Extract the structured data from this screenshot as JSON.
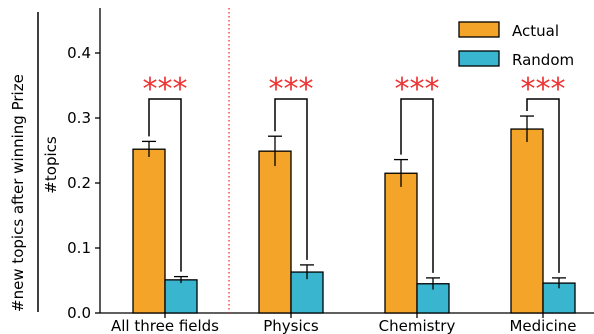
{
  "chart_data": {
    "type": "bar",
    "categories": [
      "All three fields",
      "Physics",
      "Chemistry",
      "Medicine"
    ],
    "series": [
      {
        "name": "Actual",
        "values": [
          0.252,
          0.249,
          0.215,
          0.283
        ],
        "errors": [
          0.012,
          0.023,
          0.021,
          0.02
        ],
        "color": "#f5a42a"
      },
      {
        "name": "Random",
        "values": [
          0.051,
          0.063,
          0.045,
          0.046
        ],
        "errors": [
          0.005,
          0.011,
          0.009,
          0.008
        ],
        "color": "#3ab5cf"
      }
    ],
    "significance": [
      "***",
      "***",
      "***",
      "***"
    ],
    "significance_color": "#ee3333",
    "ylabel_outer": "#new topics after winning Prize",
    "ylabel_inner": "#topics",
    "yticks": [
      "0.0",
      "0.1",
      "0.2",
      "0.3",
      "0.4"
    ],
    "ylim": [
      0,
      0.47
    ],
    "separator": {
      "style": "dotted",
      "color": "#ee3333",
      "after_category": 0
    },
    "legend": {
      "placement": "top-right"
    },
    "grid": false
  }
}
